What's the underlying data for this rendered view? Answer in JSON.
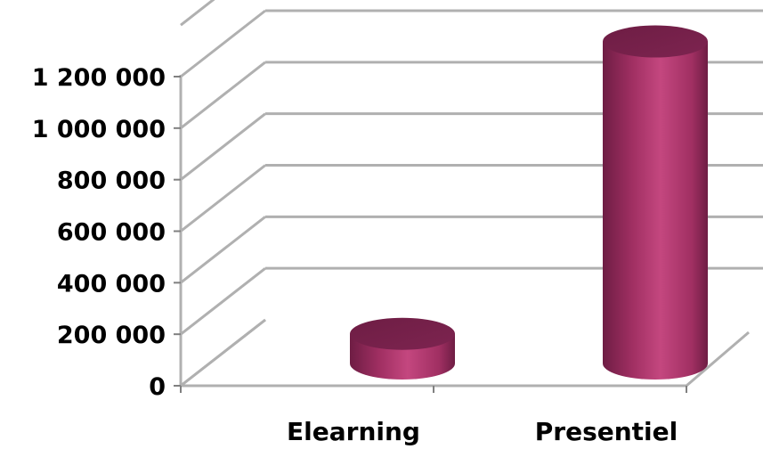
{
  "chart_data": {
    "type": "bar",
    "style": "3d-cylinder",
    "categories": [
      "Elearning",
      "Presentiel"
    ],
    "values": [
      115000,
      1250000
    ],
    "title": "",
    "xlabel": "",
    "ylabel": "",
    "ylim": [
      0,
      1200000
    ],
    "yticks": [
      0,
      200000,
      400000,
      600000,
      800000,
      1000000,
      1200000
    ],
    "ytick_labels": [
      "0",
      "200 000",
      "400 000",
      "600 000",
      "800 000",
      "1 000 000",
      "1 200 000"
    ],
    "grid": true,
    "legend": false
  },
  "colors": {
    "bar_main": "#a02f62",
    "bar_light": "#c4477f",
    "bar_dark": "#6e1d44",
    "bar_top": "#7d2450",
    "grid": "#b0b0b0",
    "axis": "#808080"
  }
}
